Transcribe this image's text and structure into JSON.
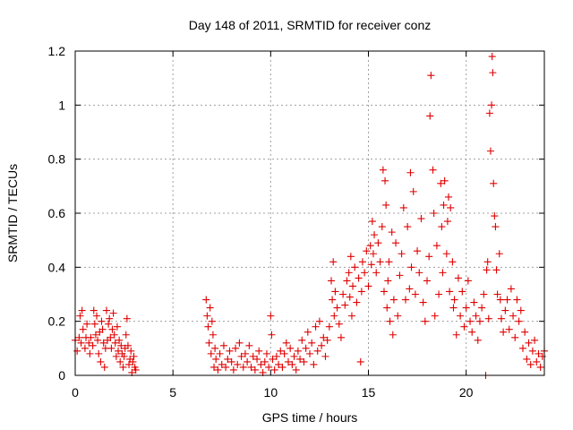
{
  "colors": {
    "background": "#ffffff",
    "axis": "#000000",
    "grid": "#a0a0a0",
    "series": "#e00000"
  },
  "chart_data": {
    "type": "scatter",
    "title": "Day 148 of 2011, SRMTID for receiver conz",
    "xlabel": "GPS time / hours",
    "ylabel": "SRMTID / TECUs",
    "xlim": [
      0,
      24
    ],
    "ylim": [
      0,
      1.2
    ],
    "x_ticks": [
      0,
      5,
      10,
      15,
      20
    ],
    "x_tick_labels": [
      "0",
      "5",
      "10",
      "15",
      "20"
    ],
    "y_ticks": [
      0,
      0.2,
      0.4,
      0.6,
      0.8,
      1,
      1.2
    ],
    "y_tick_labels": [
      "0",
      "0.2",
      "0.4",
      "0.6",
      "0.8",
      "1",
      "1.2"
    ],
    "grid": true,
    "marker": "plus",
    "series": [
      {
        "name": "SRMTID",
        "color": "#e00000",
        "points": [
          [
            0.0,
            0.13
          ],
          [
            0.1,
            0.09
          ],
          [
            0.2,
            0.14
          ],
          [
            0.25,
            0.22
          ],
          [
            0.3,
            0.12
          ],
          [
            0.35,
            0.24
          ],
          [
            0.4,
            0.17
          ],
          [
            0.5,
            0.1
          ],
          [
            0.55,
            0.14
          ],
          [
            0.6,
            0.19
          ],
          [
            0.7,
            0.12
          ],
          [
            0.75,
            0.08
          ],
          [
            0.8,
            0.14
          ],
          [
            0.9,
            0.11
          ],
          [
            0.95,
            0.24
          ],
          [
            1.0,
            0.19
          ],
          [
            1.05,
            0.15
          ],
          [
            1.1,
            0.22
          ],
          [
            1.15,
            0.13
          ],
          [
            1.2,
            0.08
          ],
          [
            1.25,
            0.16
          ],
          [
            1.3,
            0.05
          ],
          [
            1.35,
            0.2
          ],
          [
            1.4,
            0.17
          ],
          [
            1.45,
            0.12
          ],
          [
            1.5,
            0.03
          ],
          [
            1.55,
            0.1
          ],
          [
            1.6,
            0.24
          ],
          [
            1.65,
            0.13
          ],
          [
            1.7,
            0.19
          ],
          [
            1.75,
            0.21
          ],
          [
            1.8,
            0.14
          ],
          [
            1.85,
            0.1
          ],
          [
            1.9,
            0.17
          ],
          [
            1.95,
            0.23
          ],
          [
            2.0,
            0.15
          ],
          [
            2.05,
            0.12
          ],
          [
            2.1,
            0.07
          ],
          [
            2.15,
            0.18
          ],
          [
            2.2,
            0.09
          ],
          [
            2.25,
            0.13
          ],
          [
            2.3,
            0.05
          ],
          [
            2.35,
            0.11
          ],
          [
            2.4,
            0.08
          ],
          [
            2.45,
            0.03
          ],
          [
            2.5,
            0.07
          ],
          [
            2.55,
            0.1
          ],
          [
            2.6,
            0.15
          ],
          [
            2.65,
            0.21
          ],
          [
            2.7,
            0.11
          ],
          [
            2.75,
            0.04
          ],
          [
            2.8,
            0.06
          ],
          [
            2.85,
            0.09
          ],
          [
            2.9,
            0.01
          ],
          [
            2.95,
            0.05
          ],
          [
            3.0,
            0.07
          ],
          [
            3.05,
            0.03
          ],
          [
            3.1,
            0.02
          ],
          [
            6.7,
            0.28
          ],
          [
            6.75,
            0.22
          ],
          [
            6.8,
            0.18
          ],
          [
            6.85,
            0.12
          ],
          [
            6.9,
            0.25
          ],
          [
            6.95,
            0.08
          ],
          [
            7.0,
            0.2
          ],
          [
            7.05,
            0.15
          ],
          [
            7.1,
            0.03
          ],
          [
            7.15,
            0.1
          ],
          [
            7.2,
            0.06
          ],
          [
            7.3,
            0.02
          ],
          [
            7.4,
            0.08
          ],
          [
            7.5,
            0.04
          ],
          [
            7.6,
            0.11
          ],
          [
            7.7,
            0.03
          ],
          [
            7.8,
            0.06
          ],
          [
            7.9,
            0.09
          ],
          [
            8.0,
            0.05
          ],
          [
            8.1,
            0.02
          ],
          [
            8.2,
            0.1
          ],
          [
            8.3,
            0.04
          ],
          [
            8.4,
            0.12
          ],
          [
            8.5,
            0.07
          ],
          [
            8.6,
            0.03
          ],
          [
            8.7,
            0.08
          ],
          [
            8.8,
            0.05
          ],
          [
            8.9,
            0.11
          ],
          [
            9.0,
            0.03
          ],
          [
            9.1,
            0.07
          ],
          [
            9.2,
            0.02
          ],
          [
            9.3,
            0.06
          ],
          [
            9.4,
            0.09
          ],
          [
            9.5,
            0.04
          ],
          [
            9.6,
            0.01
          ],
          [
            9.7,
            0.05
          ],
          [
            9.8,
            0.08
          ],
          [
            9.9,
            0.03
          ],
          [
            10.0,
            0.22
          ],
          [
            10.05,
            0.15
          ],
          [
            10.1,
            0.06
          ],
          [
            10.2,
            0.02
          ],
          [
            10.3,
            0.07
          ],
          [
            10.4,
            0.04
          ],
          [
            10.5,
            0.09
          ],
          [
            10.6,
            0.03
          ],
          [
            10.7,
            0.08
          ],
          [
            10.8,
            0.12
          ],
          [
            10.9,
            0.05
          ],
          [
            11.0,
            0.1
          ],
          [
            11.1,
            0.04
          ],
          [
            11.2,
            0.07
          ],
          [
            11.3,
            0.02
          ],
          [
            11.4,
            0.09
          ],
          [
            11.5,
            0.06
          ],
          [
            11.6,
            0.13
          ],
          [
            11.7,
            0.05
          ],
          [
            11.8,
            0.1
          ],
          [
            11.9,
            0.16
          ],
          [
            12.0,
            0.08
          ],
          [
            12.1,
            0.12
          ],
          [
            12.2,
            0.04
          ],
          [
            12.3,
            0.18
          ],
          [
            12.4,
            0.09
          ],
          [
            12.5,
            0.2
          ],
          [
            12.6,
            0.11
          ],
          [
            12.7,
            0.14
          ],
          [
            12.8,
            0.07
          ],
          [
            12.9,
            0.13
          ],
          [
            13.0,
            0.18
          ],
          [
            13.1,
            0.35
          ],
          [
            13.15,
            0.28
          ],
          [
            13.2,
            0.42
          ],
          [
            13.25,
            0.22
          ],
          [
            13.3,
            0.31
          ],
          [
            13.4,
            0.25
          ],
          [
            13.5,
            0.19
          ],
          [
            13.6,
            0.14
          ],
          [
            13.7,
            0.3
          ],
          [
            13.8,
            0.26
          ],
          [
            13.9,
            0.35
          ],
          [
            14.0,
            0.38
          ],
          [
            14.05,
            0.29
          ],
          [
            14.1,
            0.44
          ],
          [
            14.15,
            0.22
          ],
          [
            14.2,
            0.33
          ],
          [
            14.3,
            0.4
          ],
          [
            14.4,
            0.27
          ],
          [
            14.5,
            0.36
          ],
          [
            14.6,
            0.05
          ],
          [
            14.65,
            0.31
          ],
          [
            14.7,
            0.42
          ],
          [
            14.8,
            0.38
          ],
          [
            14.9,
            0.46
          ],
          [
            15.0,
            0.33
          ],
          [
            15.1,
            0.48
          ],
          [
            15.15,
            0.41
          ],
          [
            15.2,
            0.57
          ],
          [
            15.25,
            0.45
          ],
          [
            15.3,
            0.52
          ],
          [
            15.4,
            0.38
          ],
          [
            15.5,
            0.49
          ],
          [
            15.6,
            0.42
          ],
          [
            15.7,
            0.55
          ],
          [
            15.75,
            0.76
          ],
          [
            15.8,
            0.31
          ],
          [
            15.85,
            0.72
          ],
          [
            15.9,
            0.63
          ],
          [
            15.95,
            0.25
          ],
          [
            16.0,
            0.35
          ],
          [
            16.05,
            0.42
          ],
          [
            16.1,
            0.2
          ],
          [
            16.2,
            0.53
          ],
          [
            16.25,
            0.15
          ],
          [
            16.3,
            0.28
          ],
          [
            16.4,
            0.49
          ],
          [
            16.5,
            0.22
          ],
          [
            16.6,
            0.37
          ],
          [
            16.7,
            0.45
          ],
          [
            16.8,
            0.62
          ],
          [
            16.9,
            0.28
          ],
          [
            17.0,
            0.55
          ],
          [
            17.1,
            0.32
          ],
          [
            17.15,
            0.75
          ],
          [
            17.2,
            0.4
          ],
          [
            17.3,
            0.68
          ],
          [
            17.4,
            0.3
          ],
          [
            17.5,
            0.46
          ],
          [
            17.6,
            0.38
          ],
          [
            17.7,
            0.58
          ],
          [
            17.8,
            0.27
          ],
          [
            17.9,
            0.2
          ],
          [
            18.0,
            0.35
          ],
          [
            18.1,
            0.44
          ],
          [
            18.15,
            0.96
          ],
          [
            18.2,
            1.11
          ],
          [
            18.3,
            0.76
          ],
          [
            18.35,
            0.6
          ],
          [
            18.4,
            0.22
          ],
          [
            18.5,
            0.48
          ],
          [
            18.6,
            0.3
          ],
          [
            18.7,
            0.71
          ],
          [
            18.75,
            0.55
          ],
          [
            18.8,
            0.38
          ],
          [
            18.85,
            0.63
          ],
          [
            18.9,
            0.72
          ],
          [
            19.0,
            0.45
          ],
          [
            19.05,
            0.57
          ],
          [
            19.1,
            0.66
          ],
          [
            19.15,
            0.31
          ],
          [
            19.2,
            0.62
          ],
          [
            19.3,
            0.42
          ],
          [
            19.35,
            0.25
          ],
          [
            19.4,
            0.28
          ],
          [
            19.5,
            0.15
          ],
          [
            19.6,
            0.36
          ],
          [
            19.7,
            0.22
          ],
          [
            19.8,
            0.31
          ],
          [
            19.9,
            0.18
          ],
          [
            20.0,
            0.25
          ],
          [
            20.1,
            0.35
          ],
          [
            20.2,
            0.2
          ],
          [
            20.3,
            0.16
          ],
          [
            20.4,
            0.27
          ],
          [
            20.5,
            0.22
          ],
          [
            20.6,
            0.13
          ],
          [
            20.7,
            0.2
          ],
          [
            20.8,
            0.25
          ],
          [
            20.9,
            0.3
          ],
          [
            21.0,
            0.0
          ],
          [
            21.05,
            0.39
          ],
          [
            21.1,
            0.42
          ],
          [
            21.15,
            0.21
          ],
          [
            21.2,
            0.97
          ],
          [
            21.25,
            0.83
          ],
          [
            21.3,
            1.0
          ],
          [
            21.33,
            1.18
          ],
          [
            21.36,
            1.12
          ],
          [
            21.4,
            0.71
          ],
          [
            21.45,
            0.59
          ],
          [
            21.5,
            0.55
          ],
          [
            21.55,
            0.39
          ],
          [
            21.6,
            0.3
          ],
          [
            21.7,
            0.45
          ],
          [
            21.75,
            0.28
          ],
          [
            21.8,
            0.21
          ],
          [
            21.9,
            0.16
          ],
          [
            22.0,
            0.24
          ],
          [
            22.1,
            0.28
          ],
          [
            22.2,
            0.17
          ],
          [
            22.3,
            0.32
          ],
          [
            22.4,
            0.22
          ],
          [
            22.5,
            0.14
          ],
          [
            22.6,
            0.28
          ],
          [
            22.7,
            0.2
          ],
          [
            22.8,
            0.24
          ],
          [
            22.9,
            0.1
          ],
          [
            23.0,
            0.16
          ],
          [
            23.1,
            0.06
          ],
          [
            23.2,
            0.12
          ],
          [
            23.3,
            0.04
          ],
          [
            23.4,
            0.09
          ],
          [
            23.5,
            0.13
          ],
          [
            23.6,
            0.05
          ],
          [
            23.7,
            0.08
          ],
          [
            23.8,
            0.03
          ],
          [
            23.9,
            0.07
          ],
          [
            24.0,
            0.09
          ]
        ]
      }
    ]
  }
}
